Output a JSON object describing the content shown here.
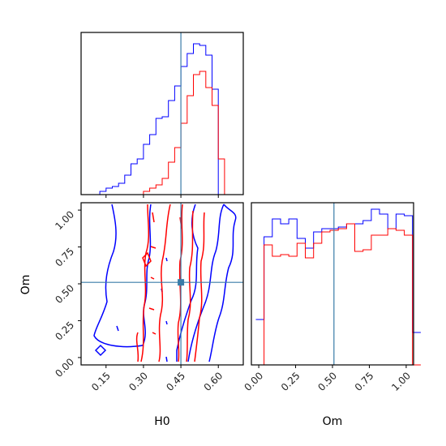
{
  "chart_data": {
    "type": "corner",
    "parameters": [
      "H0",
      "Om"
    ],
    "truth": {
      "H0": 0.45,
      "Om": 0.51
    },
    "colors": {
      "series_a": "#0000ff",
      "series_b": "#ff0000",
      "truth": "#3a7ca8"
    },
    "axes": {
      "H0": {
        "label": "H0",
        "range": [
          0.05,
          0.7
        ],
        "ticks": [
          "0.15",
          "0.30",
          "0.45",
          "0.60"
        ]
      },
      "Om": {
        "label": "Om",
        "range": [
          -0.05,
          1.05
        ],
        "ticks": [
          "0.00",
          "0.25",
          "0.50",
          "0.75",
          "1.00"
        ]
      }
    },
    "hist_H0": {
      "bins": 26,
      "series_blue": [
        0.0,
        0.0,
        0.0,
        0.02,
        0.04,
        0.05,
        0.07,
        0.12,
        0.19,
        0.22,
        0.31,
        0.37,
        0.47,
        0.48,
        0.58,
        0.67,
        0.79,
        0.87,
        0.93,
        0.92,
        0.86,
        0.65,
        0.0,
        0.0,
        0.0,
        0.0
      ],
      "series_red": [
        0.0,
        0.0,
        0.0,
        0.0,
        0.0,
        0.0,
        0.0,
        0.0,
        0.0,
        0.0,
        0.02,
        0.04,
        0.06,
        0.1,
        0.2,
        0.29,
        0.44,
        0.61,
        0.74,
        0.76,
        0.66,
        0.55,
        0.22,
        0.0,
        0.0,
        0.0
      ]
    },
    "hist_Om": {
      "bins": 20,
      "series_blue": [
        0.28,
        0.79,
        0.9,
        0.87,
        0.9,
        0.78,
        0.72,
        0.82,
        0.84,
        0.84,
        0.85,
        0.87,
        0.87,
        0.89,
        0.96,
        0.93,
        0.84,
        0.93,
        0.92,
        0.2
      ],
      "series_red": [
        0.0,
        0.74,
        0.67,
        0.68,
        0.67,
        0.75,
        0.66,
        0.75,
        0.82,
        0.83,
        0.84,
        0.87,
        0.7,
        0.71,
        0.8,
        0.8,
        0.84,
        0.83,
        0.8,
        0.0
      ]
    }
  }
}
